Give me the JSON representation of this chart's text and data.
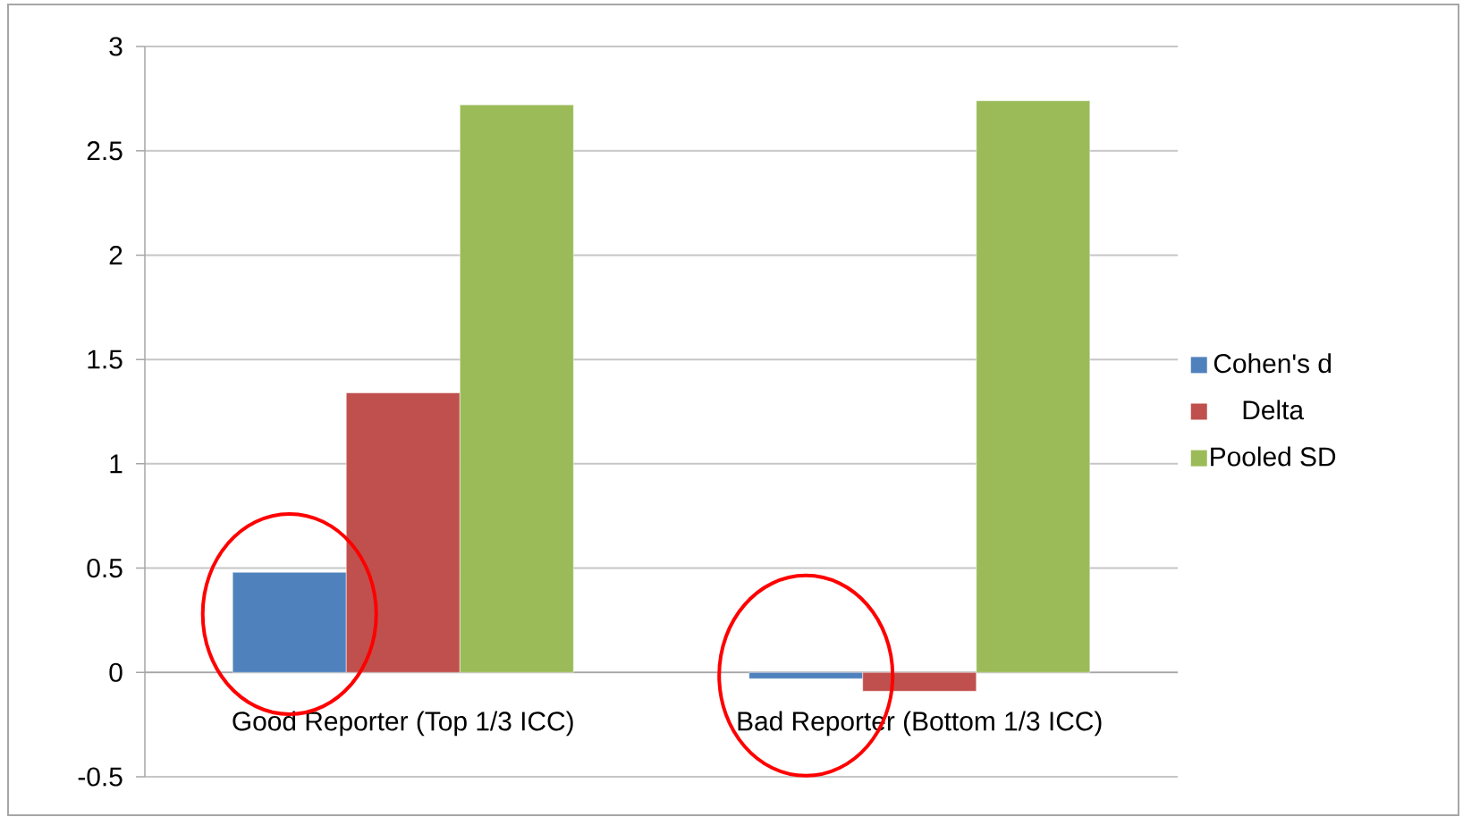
{
  "chart_data": {
    "type": "bar",
    "categories": [
      "Good Reporter (Top 1/3 ICC)",
      "Bad Reporter (Bottom 1/3 ICC)"
    ],
    "series": [
      {
        "name": "Cohen's d",
        "color": "#4f81bd",
        "values": [
          0.48,
          -0.03
        ]
      },
      {
        "name": "Delta",
        "color": "#c0504d",
        "values": [
          1.34,
          -0.09
        ]
      },
      {
        "name": "Pooled SD",
        "color": "#9bbb59",
        "values": [
          2.72,
          2.74
        ]
      }
    ],
    "ylim": [
      -0.5,
      3
    ],
    "yticks": [
      -0.5,
      0,
      0.5,
      1,
      1.5,
      2,
      2.5,
      3
    ],
    "grid": "y",
    "legend": "right"
  }
}
